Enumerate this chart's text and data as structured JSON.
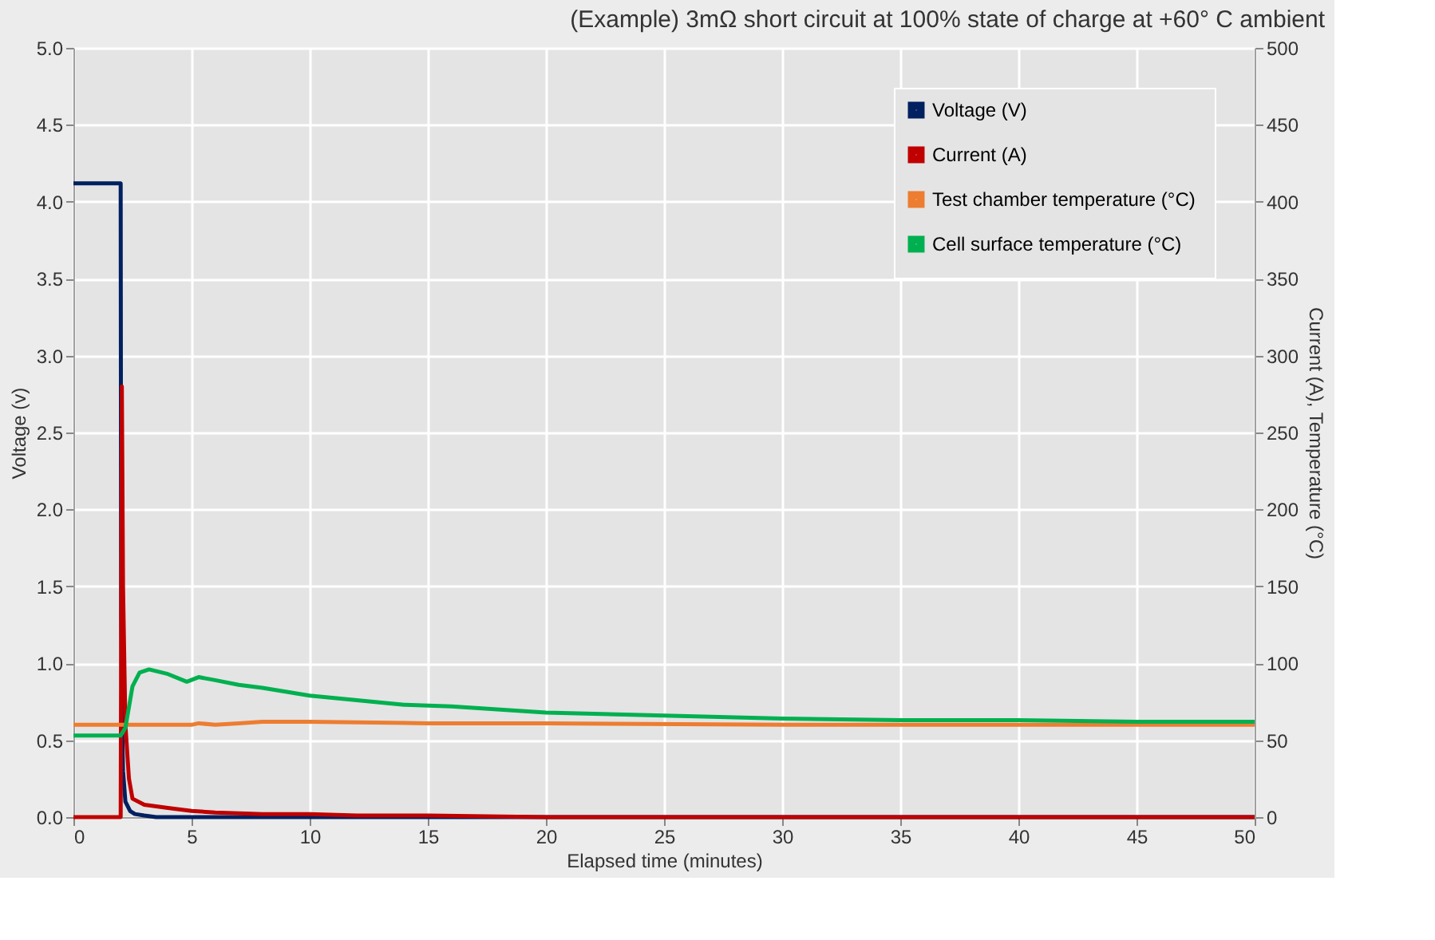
{
  "chart_data": {
    "type": "line",
    "title": "(Example) 3mΩ short circuit at 100% state of charge at +60° C ambient",
    "xlabel": "Elapsed time (minutes)",
    "ylabel": "Voltage (v)",
    "y2label": "Current (A), Temperature (°C)",
    "xlim": [
      0,
      50
    ],
    "xticks": [
      0,
      5,
      10,
      15,
      20,
      25,
      30,
      35,
      40,
      45,
      50
    ],
    "ylim": [
      0,
      5
    ],
    "yticks": [
      {
        "value": 0,
        "label": "0.0"
      },
      0.5,
      {
        "value": 1,
        "label": "1.0"
      },
      1.5,
      {
        "value": 2,
        "label": "2.0"
      },
      2.5,
      {
        "value": 3,
        "label": "3.0"
      },
      3.5,
      {
        "value": 4,
        "label": "4.0"
      },
      4.5,
      {
        "value": 5,
        "label": "5.0"
      }
    ],
    "y2lim": [
      0,
      500
    ],
    "y2ticks": [
      0,
      50,
      100,
      150,
      200,
      250,
      300,
      350,
      400,
      450,
      500
    ],
    "grid": true,
    "legend": "top right",
    "line_style": "solid",
    "marker": "none",
    "series": [
      {
        "name": "Voltage (V)",
        "color": "#002060",
        "x": [
          0,
          2.0,
          2.02,
          2.05,
          2.1,
          2.2,
          2.4,
          2.6,
          3.0,
          3.5,
          5,
          10,
          20,
          50
        ],
        "values": [
          4.12,
          4.12,
          1.3,
          0.7,
          0.3,
          0.1,
          0.04,
          0.02,
          0.01,
          0.0,
          0.0,
          0.0,
          0.0,
          0.0
        ]
      },
      {
        "name": "Current (A)",
        "color": "#c00000",
        "axis": "y2",
        "x": [
          0,
          2.0,
          2.05,
          2.1,
          2.2,
          2.35,
          2.5,
          3,
          4,
          5,
          6,
          8,
          10,
          12,
          15,
          20,
          30,
          50
        ],
        "values": [
          0,
          0,
          280,
          150,
          60,
          25,
          12,
          8,
          6,
          4,
          3,
          2,
          2,
          1,
          1,
          0,
          0,
          0
        ]
      },
      {
        "name": "Test chamber temperature  (°C)",
        "color": "#ed7d31",
        "axis": "y2",
        "x": [
          0,
          5,
          5.3,
          6,
          7,
          8,
          10,
          15,
          20,
          30,
          40,
          50
        ],
        "values": [
          60,
          60,
          61,
          60,
          61,
          62,
          62,
          61,
          61,
          60,
          60,
          60
        ]
      },
      {
        "name": "Cell surface temperature (°C)",
        "color": "#00b050",
        "axis": "y2",
        "x": [
          0,
          2.0,
          2.2,
          2.5,
          2.8,
          3.2,
          4,
          4.8,
          5.3,
          6,
          7,
          8,
          10,
          12,
          14,
          16,
          20,
          25,
          30,
          35,
          40,
          45,
          50
        ],
        "values": [
          53,
          53,
          58,
          85,
          94,
          96,
          93,
          88,
          91,
          89,
          86,
          84,
          79,
          76,
          73,
          72,
          68,
          66,
          64,
          63,
          63,
          62,
          62
        ]
      }
    ]
  }
}
